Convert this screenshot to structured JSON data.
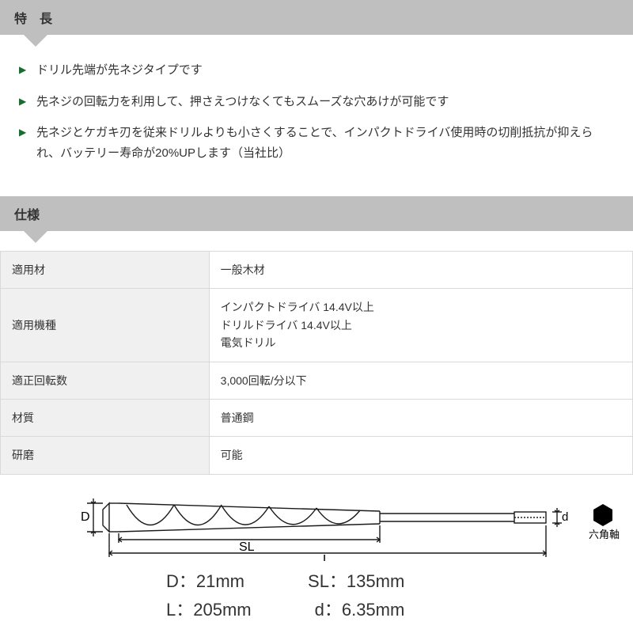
{
  "sections": {
    "features": {
      "title": "特　長"
    },
    "spec": {
      "title": "仕様"
    }
  },
  "features": [
    "ドリル先端が先ネジタイプです",
    "先ネジの回転力を利用して、押さえつけなくてもスムーズな穴あけが可能です",
    "先ネジとケガキ刃を従来ドリルよりも小さくすることで、インパクトドライバ使用時の切削抵抗が抑えられ、バッテリー寿命が20%UPします（当社比）"
  ],
  "spec_rows": [
    {
      "label": "適用材",
      "value": "一般木材"
    },
    {
      "label": "適用機種",
      "value": "インパクトドライバ 14.4V以上\nドリルドライバ 14.4V以上\n電気ドリル"
    },
    {
      "label": "適正回転数",
      "value": "3,000回転/分以下"
    },
    {
      "label": "材質",
      "value": "普通鋼"
    },
    {
      "label": "研磨",
      "value": "可能"
    }
  ],
  "diagram": {
    "labels": {
      "D": "D",
      "SL": "SL",
      "L": "L",
      "d": "d"
    },
    "shank_label": "六角軸",
    "stroke_color": "#1a1a1a",
    "stroke_width": 1.4,
    "bg": "#ffffff"
  },
  "dimensions": {
    "D": "D：21mm",
    "SL": "SL：135mm",
    "L": "L：205mm",
    "d": "d：6.35mm"
  }
}
